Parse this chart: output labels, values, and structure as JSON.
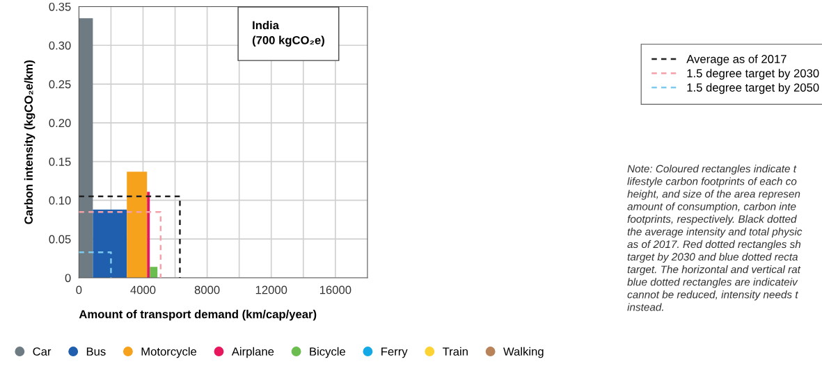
{
  "chart_data": {
    "type": "area",
    "title": "India\n(700 kgCO₂e)",
    "xlabel": "Amount of transport demand (km/cap/year)",
    "ylabel": "Carbon intensity (kgCO₂e/km)",
    "xlim": [
      0,
      18000
    ],
    "xticks": [
      0,
      {
        "value": 2000,
        "label": null
      },
      4000,
      {
        "value": 6000,
        "label": null
      },
      8000,
      {
        "value": 10000,
        "label": null
      },
      12000,
      {
        "value": 14000,
        "label": null
      },
      16000
    ],
    "ylim": [
      0,
      0.35
    ],
    "yticks": [
      0,
      {
        "value": 0.05,
        "label": "0.05"
      },
      {
        "value": 0.1,
        "label": "0.10"
      },
      {
        "value": 0.15,
        "label": "0.15"
      },
      {
        "value": 0.2,
        "label": "0.20"
      },
      {
        "value": 0.25,
        "label": "0.25"
      },
      {
        "value": 0.3,
        "label": "0.30"
      },
      {
        "value": 0.35,
        "label": "0.35"
      }
    ],
    "grid": true,
    "legend": "bottom",
    "series": [
      {
        "name": "Car",
        "color": "#6e7b83",
        "x": [
          0,
          870
        ],
        "values": [
          0.335,
          0.335
        ]
      },
      {
        "name": "Bus",
        "color": "#1f5fad",
        "x": [
          870,
          2990
        ],
        "values": [
          0.088,
          0.088
        ]
      },
      {
        "name": "Motorcycle",
        "color": "#f6a21c",
        "x": [
          2990,
          4250
        ],
        "values": [
          0.137,
          0.137
        ]
      },
      {
        "name": "Airplane",
        "color": "#e8175d",
        "x": [
          4250,
          4420
        ],
        "values": [
          0.111,
          0.111
        ]
      },
      {
        "name": "Bicycle",
        "color": "#6cbd4f",
        "x": [
          4420,
          4900
        ],
        "values": [
          0.014,
          0.014
        ]
      },
      {
        "name": "Ferry",
        "color": "#14a9e6"
      },
      {
        "name": "Train",
        "color": "#fdd233"
      },
      {
        "name": "Walking",
        "color": "#b9835a"
      },
      {
        "name": "Average as of 2017",
        "type": "line",
        "line_style": "dashed",
        "color": "#222222",
        "x": [
          0,
          6300,
          6300
        ],
        "values": [
          0.105,
          0.105,
          0
        ]
      },
      {
        "name": "1.5 degree target by 2030",
        "type": "line",
        "line_style": "dashed",
        "color": "#f4a0a8",
        "x": [
          0,
          5100,
          5100
        ],
        "values": [
          0.085,
          0.085,
          0
        ]
      },
      {
        "name": "1.5 degree target by 2050",
        "type": "line",
        "line_style": "dashed",
        "color": "#7ccbef",
        "x": [
          0,
          2000,
          2000
        ],
        "values": [
          0.033,
          0.033,
          0
        ]
      }
    ],
    "annotations": [
      "Note: Coloured rectangles indicate t\nlifestyle carbon footprints of each co\nheight, and size of the area represen\namount of consumption, carbon inte\nfootprints, respectively. Black dotted\nthe average intensity and total physic\nas of 2017. Red dotted rectangles sh\ntarget by 2030 and blue dotted recta\ntarget. The horizontal and vertical rat\nblue dotted rectangles are indicateiv\ncannot be reduced, intensity needs t\ninstead."
    ]
  }
}
